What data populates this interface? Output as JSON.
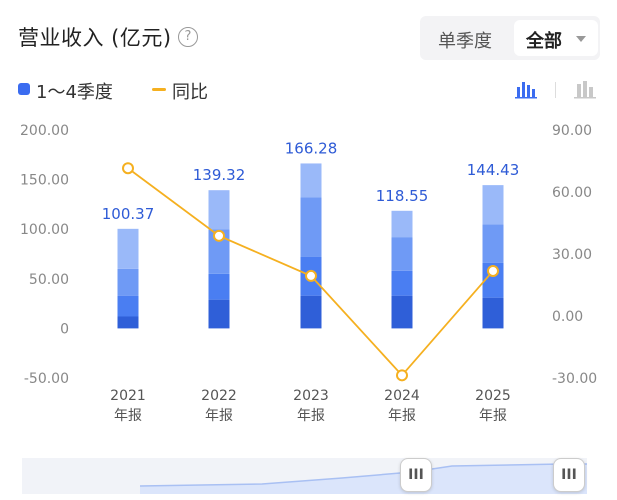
{
  "header": {
    "title": "营业收入 (亿元)",
    "help_icon": "question-circle-icon",
    "period_toggle": {
      "options": [
        "单季度",
        "全部"
      ],
      "selected": "全部"
    }
  },
  "legend": {
    "bars": "1～4季度",
    "line": "同比"
  },
  "colors": {
    "line": "#f5b020",
    "label": "#2e5bd6",
    "q_colors": [
      "#2f5fd8",
      "#4a7ef2",
      "#6f9af5",
      "#9ab9f9"
    ]
  },
  "chart_data": {
    "type": "bar",
    "categories": [
      "2021\n年报",
      "2022\n年报",
      "2023\n年报",
      "2024\n年报",
      "2025\n年报"
    ],
    "series": [
      {
        "name": "1～4季度",
        "values": [
          100.37,
          139.32,
          166.28,
          118.55,
          144.43
        ],
        "quarters": [
          [
            12,
            33,
            60,
            100.37
          ],
          [
            29,
            55,
            100,
            139.32
          ],
          [
            33,
            72,
            132,
            166.28
          ],
          [
            33,
            58,
            92,
            118.55
          ],
          [
            31,
            66,
            105,
            144.43
          ]
        ]
      },
      {
        "name": "同比",
        "axis": "right",
        "values": [
          71.5,
          38.8,
          19.4,
          -28.7,
          21.8
        ]
      }
    ],
    "y_left": {
      "ticks": [
        "200.00",
        "150.00",
        "100.00",
        "50.00",
        "0",
        "-50.00"
      ],
      "range": [
        -50,
        200
      ]
    },
    "y_right": {
      "ticks": [
        "90.00",
        "60.00",
        "30.00",
        "0.00",
        "-30.00"
      ],
      "range": [
        -30,
        90
      ]
    },
    "data_labels": [
      "100.37",
      "139.32",
      "166.28",
      "118.55",
      "144.43"
    ],
    "legend_position": "top-left",
    "grid": false
  },
  "slider": {
    "left_handle": "III",
    "right_handle": "III"
  }
}
